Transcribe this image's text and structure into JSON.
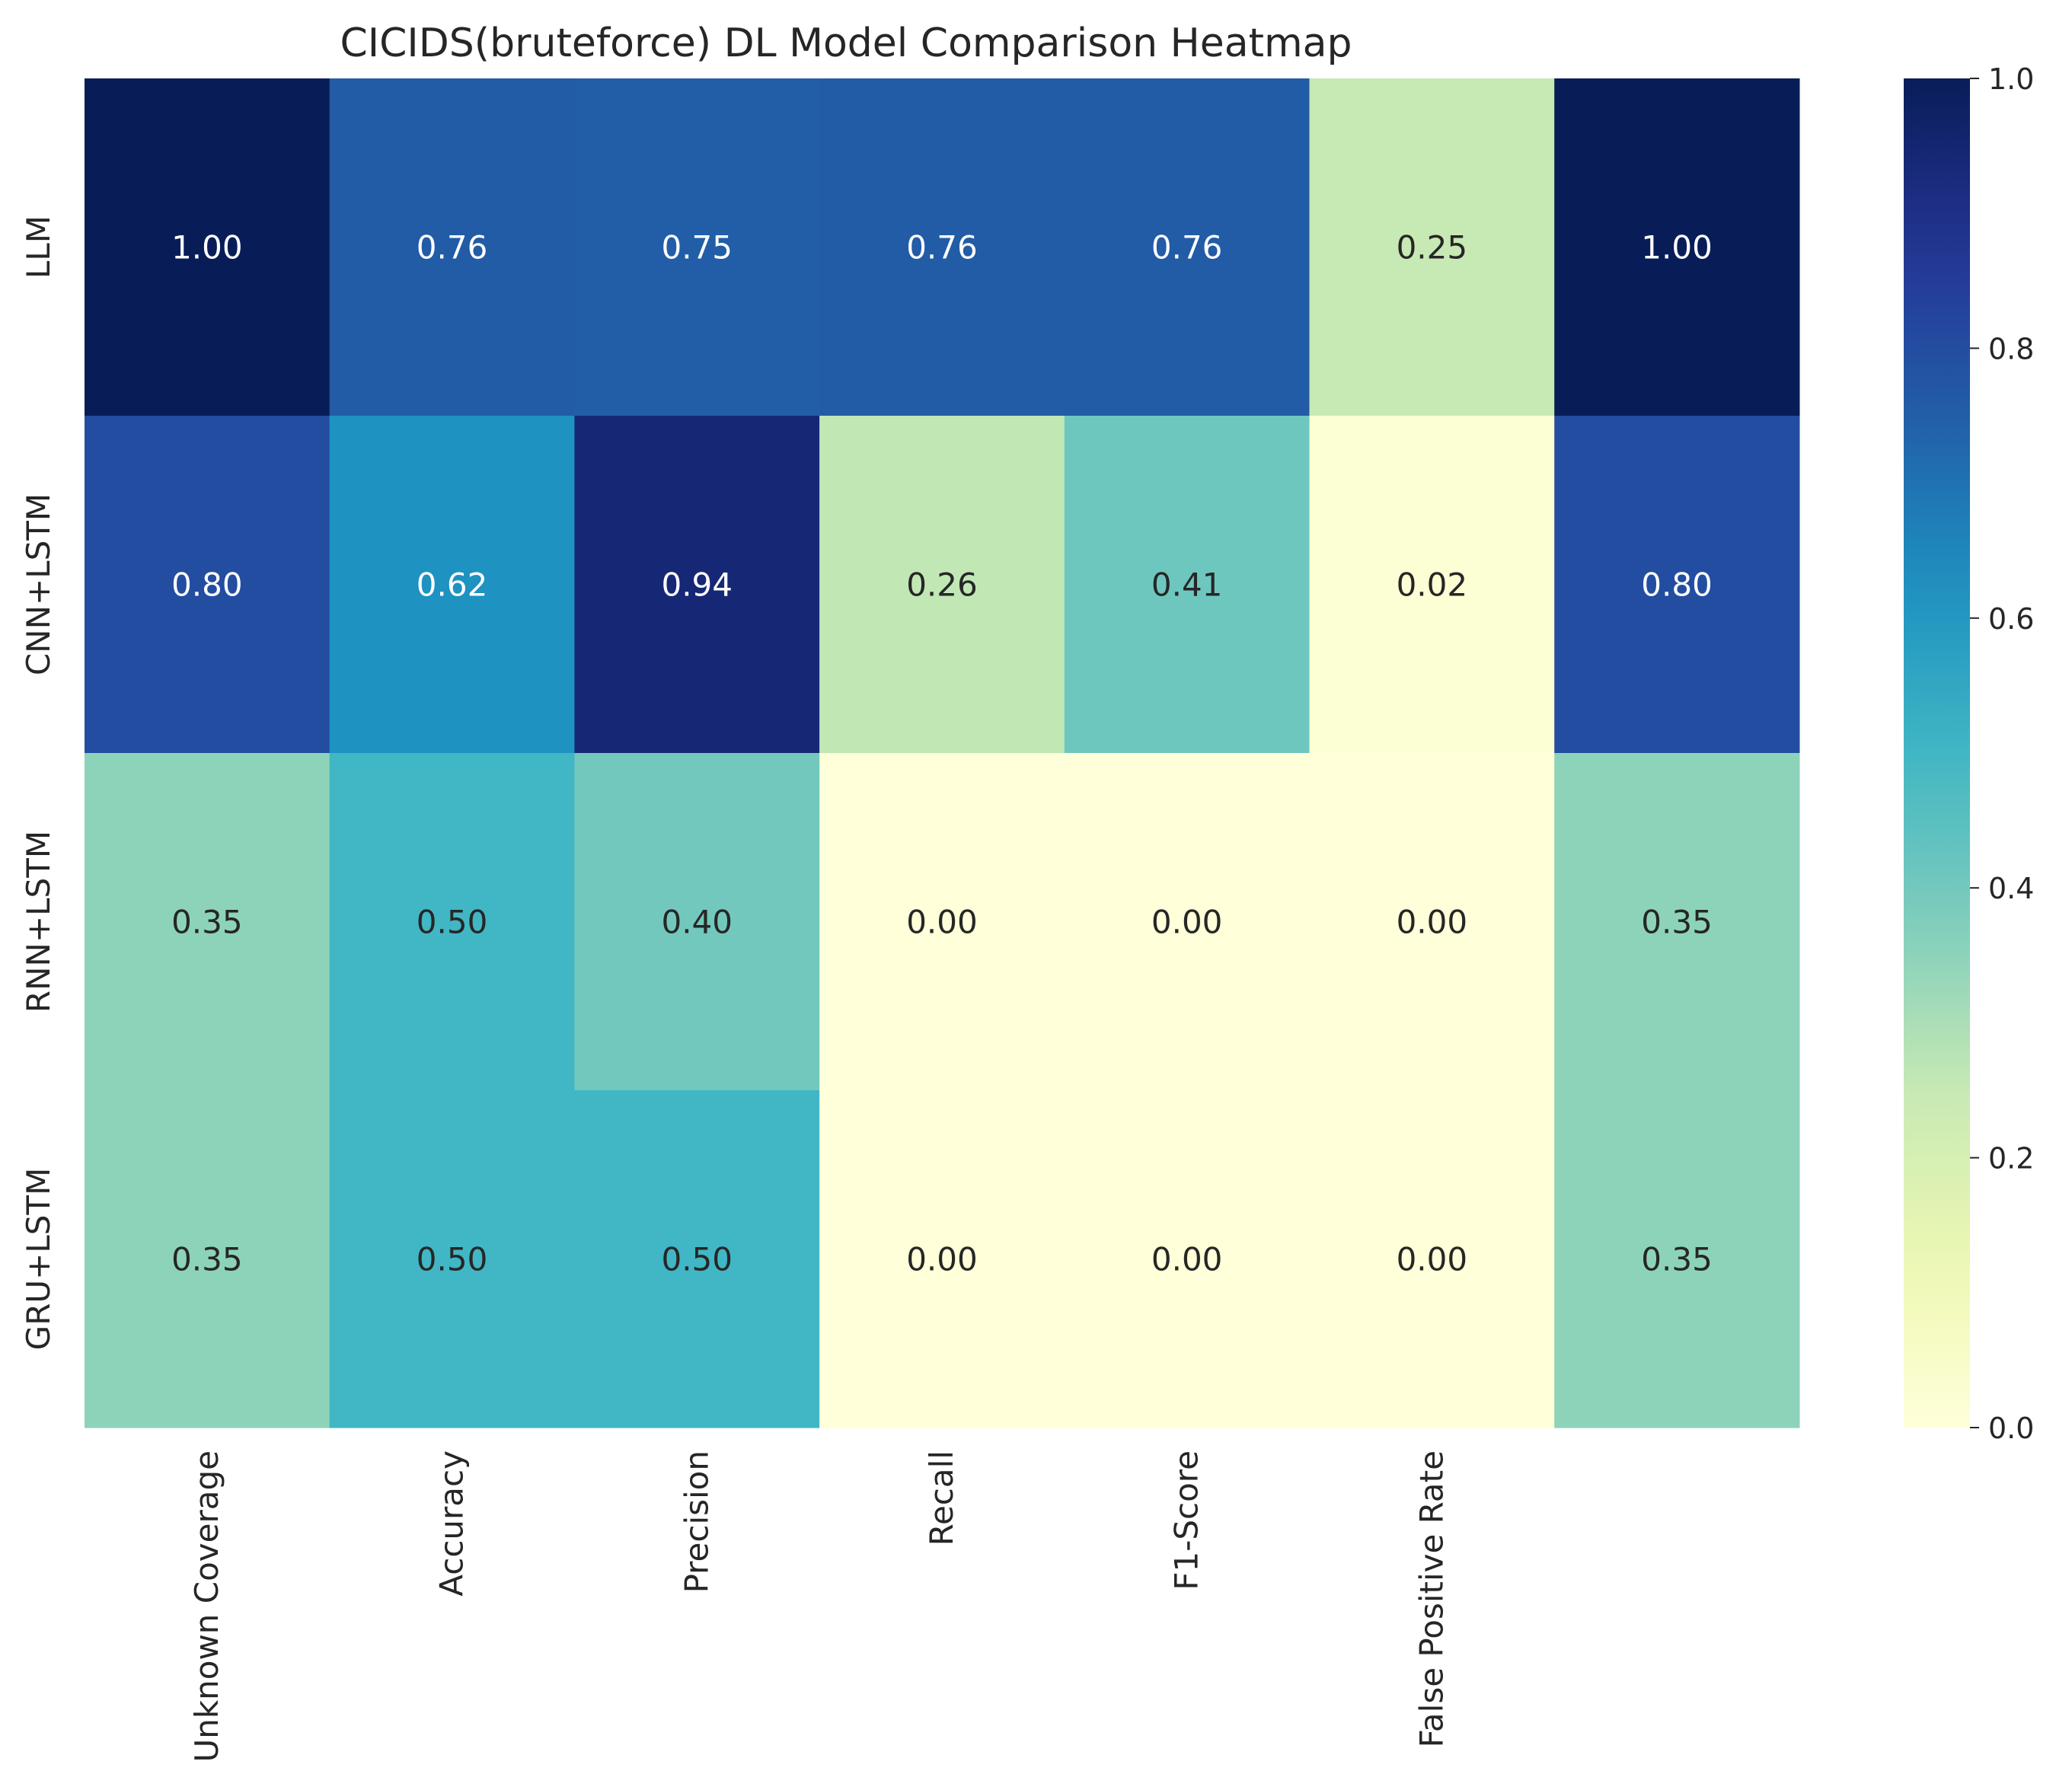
{
  "chart_data": {
    "type": "heatmap",
    "title": "CICIDS(bruteforce) DL Model Comparison Heatmap",
    "rows": [
      "LLM",
      "CNN+LSTM",
      "RNN+LSTM",
      "GRU+LSTM"
    ],
    "columns": [
      "Unknown Coverage",
      "Accuracy",
      "Precision",
      "Recall",
      "F1-Score",
      "False Positive Rate",
      ""
    ],
    "values": [
      [
        1.0,
        0.76,
        0.75,
        0.76,
        0.76,
        0.25,
        1.0
      ],
      [
        0.8,
        0.62,
        0.94,
        0.26,
        0.41,
        0.02,
        0.8
      ],
      [
        0.35,
        0.5,
        0.4,
        0.0,
        0.0,
        0.0,
        0.35
      ],
      [
        0.35,
        0.5,
        0.5,
        0.0,
        0.0,
        0.0,
        0.35
      ]
    ],
    "value_format": "0.00",
    "colormap": "YlGnBu",
    "vmin": 0.0,
    "vmax": 1.0,
    "colorbar_ticks": [
      "0.0",
      "0.2",
      "0.4",
      "0.6",
      "0.8",
      "1.0"
    ]
  }
}
